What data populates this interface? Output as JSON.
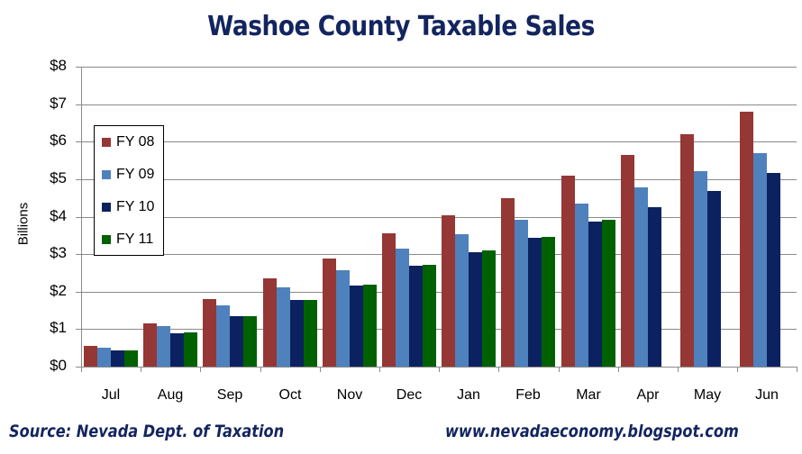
{
  "chart_data": {
    "type": "bar",
    "title": "Washoe County Taxable Sales",
    "xlabel": "",
    "ylabel": "Billions",
    "ylim": [
      0,
      8
    ],
    "yticks": [
      "$0",
      "$1",
      "$2",
      "$3",
      "$4",
      "$5",
      "$6",
      "$7",
      "$8"
    ],
    "grid": true,
    "legend_position": "upper-left (inside plot)",
    "categories": [
      "Jul",
      "Aug",
      "Sep",
      "Oct",
      "Nov",
      "Dec",
      "Jan",
      "Feb",
      "Mar",
      "Apr",
      "May",
      "Jun"
    ],
    "series": [
      {
        "name": "FY 08",
        "color": "#953735",
        "values": [
          0.56,
          1.15,
          1.81,
          2.36,
          2.89,
          3.56,
          4.04,
          4.5,
          5.1,
          5.65,
          6.2,
          6.8
        ]
      },
      {
        "name": "FY 09",
        "color": "#4f81bd",
        "values": [
          0.5,
          1.08,
          1.63,
          2.12,
          2.57,
          3.15,
          3.53,
          3.92,
          4.35,
          4.78,
          5.22,
          5.7
        ]
      },
      {
        "name": "FY 10",
        "color": "#0c2160",
        "values": [
          0.43,
          0.89,
          1.35,
          1.78,
          2.16,
          2.69,
          3.05,
          3.44,
          3.87,
          4.25,
          4.69,
          5.17
        ]
      },
      {
        "name": "FY 11",
        "color": "#006100",
        "values": [
          0.43,
          0.91,
          1.35,
          1.78,
          2.19,
          2.72,
          3.1,
          3.46,
          3.92,
          null,
          null,
          null
        ]
      }
    ]
  },
  "footer": {
    "source": "Source: Nevada Dept. of Taxation",
    "url": "www.nevadaeconomy.blogspot.com"
  }
}
